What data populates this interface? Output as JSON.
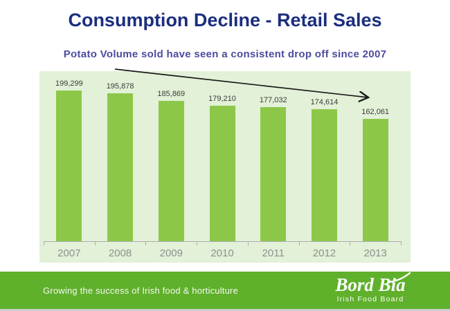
{
  "slide": {
    "title": "Consumption Decline - Retail Sales",
    "subtitle": "Potato Volume sold have seen a consistent drop off since 2007"
  },
  "chart_data": {
    "type": "bar",
    "title": "",
    "categories": [
      "2007",
      "2008",
      "2009",
      "2010",
      "2011",
      "2012",
      "2013"
    ],
    "values": [
      199299,
      195878,
      185869,
      179210,
      177032,
      174614,
      162061
    ],
    "value_labels": [
      "199,299",
      "195,878",
      "185,869",
      "179,210",
      "177,032",
      "174,614",
      "162,061"
    ],
    "xlabel": "",
    "ylabel": "",
    "ylim": [
      0,
      220000
    ],
    "grid": false,
    "legend": "none",
    "annotations": [
      "black downward trend arrow across bar tops from 2008 area to 2013"
    ],
    "bar_color": "#8DC74A",
    "plot_bg_color": "#E2F1D7"
  },
  "footer": {
    "tagline": "Growing the success of Irish food & horticulture",
    "logo_text": "Bord Bia",
    "logo_subtext": "Irish Food Board"
  },
  "colors": {
    "title_text": "#1B2E7E",
    "subtitle_text": "#4B4BA0",
    "bar_fill": "#8DC74A",
    "plot_background": "#E2F1D7",
    "footer_background": "#5FB02B",
    "footer_bottom_strip": "#CDCDCD",
    "year_label": "#8F8F8F",
    "value_label": "#3A3A3A",
    "axis": "#ADADAD",
    "arrow": "#1A1A1A"
  }
}
